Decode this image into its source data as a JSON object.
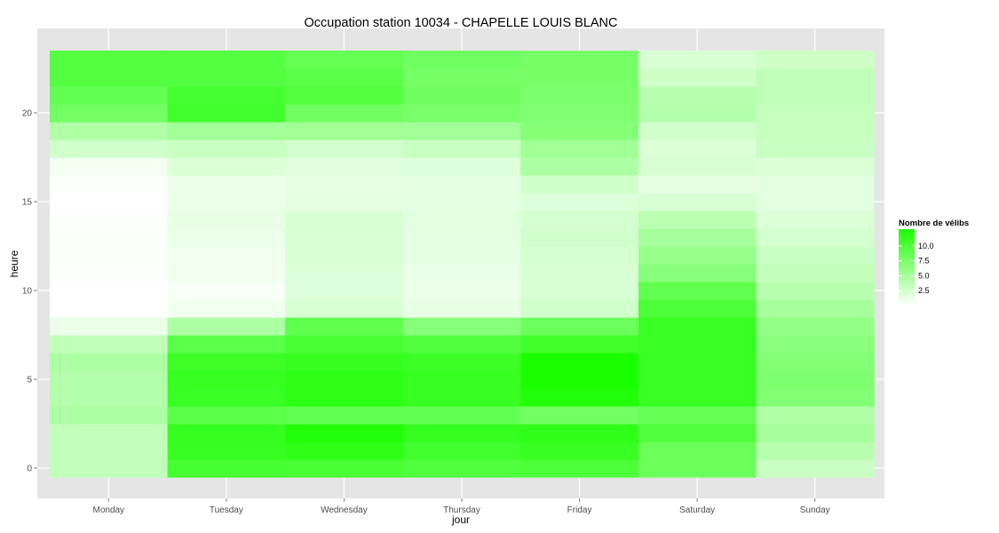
{
  "chart_data": {
    "type": "heatmap",
    "title": "Occupation station 10034 - CHAPELLE LOUIS BLANC",
    "xlabel": "jour",
    "ylabel": "heure",
    "categories": [
      "Monday",
      "Tuesday",
      "Wednesday",
      "Thursday",
      "Friday",
      "Saturday",
      "Sunday"
    ],
    "y_values": [
      0,
      1,
      2,
      3,
      4,
      5,
      6,
      7,
      8,
      9,
      10,
      11,
      12,
      13,
      14,
      15,
      16,
      17,
      18,
      19,
      20,
      21,
      22,
      23
    ],
    "y_ticks": [
      "0",
      "5",
      "10",
      "15",
      "20"
    ],
    "y_range": [
      -0.5,
      23.5
    ],
    "values": [
      [
        3.4,
        10.4,
        10.2,
        9.8,
        10.0,
        8.3,
        3.0
      ],
      [
        3.4,
        11.1,
        11.7,
        10.6,
        11.1,
        8.3,
        4.0
      ],
      [
        3.4,
        11.3,
        12.4,
        11.3,
        11.6,
        9.8,
        5.0
      ],
      [
        4.6,
        9.2,
        8.7,
        8.7,
        7.9,
        8.6,
        4.5
      ],
      [
        4.2,
        11.0,
        11.8,
        11.2,
        12.4,
        11.0,
        7.0
      ],
      [
        4.2,
        11.2,
        11.8,
        11.2,
        12.8,
        11.0,
        7.2
      ],
      [
        4.6,
        10.8,
        11.3,
        10.9,
        12.8,
        11.0,
        7.0
      ],
      [
        3.6,
        9.2,
        10.2,
        9.7,
        10.7,
        11.0,
        6.6
      ],
      [
        1.1,
        4.6,
        8.9,
        6.7,
        8.2,
        11.0,
        6.0
      ],
      [
        0.0,
        0.8,
        2.2,
        1.3,
        2.6,
        10.0,
        5.0
      ],
      [
        0.0,
        0.4,
        1.9,
        1.1,
        2.2,
        8.8,
        4.0
      ],
      [
        0.1,
        0.8,
        1.9,
        1.2,
        2.2,
        6.7,
        3.4
      ],
      [
        0.3,
        0.8,
        2.1,
        1.5,
        2.4,
        5.7,
        3.0
      ],
      [
        0.3,
        1.1,
        2.1,
        1.5,
        2.6,
        5.0,
        2.4
      ],
      [
        0.1,
        1.3,
        2.2,
        1.6,
        2.4,
        3.8,
        2.0
      ],
      [
        0.0,
        1.1,
        1.4,
        1.5,
        1.9,
        2.2,
        1.6
      ],
      [
        0.1,
        1.1,
        1.3,
        1.5,
        2.7,
        1.4,
        1.6
      ],
      [
        0.7,
        2.0,
        1.7,
        1.9,
        4.6,
        2.2,
        2.0
      ],
      [
        2.6,
        3.0,
        2.5,
        3.0,
        5.3,
        2.0,
        3.0
      ],
      [
        4.4,
        5.2,
        5.3,
        5.2,
        6.9,
        2.6,
        3.2
      ],
      [
        7.8,
        10.6,
        8.0,
        7.5,
        7.1,
        4.2,
        3.3
      ],
      [
        8.7,
        10.4,
        9.6,
        8.1,
        7.4,
        4.0,
        3.6
      ],
      [
        9.6,
        9.6,
        9.2,
        7.6,
        7.6,
        2.8,
        3.6
      ],
      [
        9.6,
        9.6,
        8.6,
        8.0,
        7.6,
        2.2,
        2.8
      ]
    ],
    "color_low": "#ffffff",
    "color_high": "#1aff00",
    "value_range": [
      0,
      12.8
    ],
    "grid": true,
    "legend": {
      "title": "Nombre de vélibs",
      "labels": [
        "10.0",
        "7.5",
        "5.0",
        "2.5"
      ],
      "values": [
        10,
        7.5,
        5,
        2.5
      ],
      "position": "right"
    }
  }
}
